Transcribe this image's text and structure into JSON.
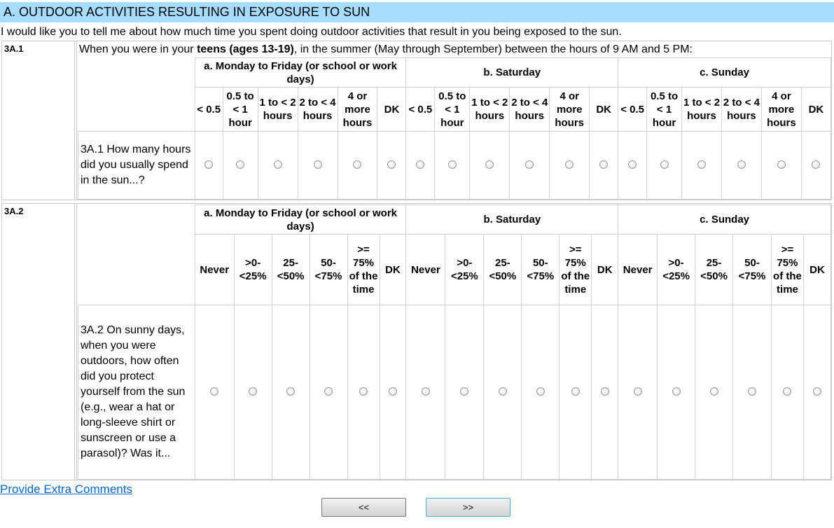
{
  "section_title": "A. OUTDOOR ACTIVITIES RESULTING IN EXPOSURE TO SUN",
  "intro": "I would like you to tell me about how much time you spent doing outdoor activities that result in you being exposed to the sun.",
  "q1": {
    "id": "3A.1",
    "text_pre": "When you were in your ",
    "text_bold": "teens (ages 13-19)",
    "text_post": ", in the summer (May through September) between the hours of 9 AM and 5 PM:",
    "groups": [
      "a. Monday to Friday (or school or work days)",
      "b. Saturday",
      "c. Sunday"
    ],
    "options": [
      "< 0.5",
      "0.5 to < 1 hour",
      "1 to < 2 hours",
      "2 to < 4 hours",
      "4 or more hours",
      "DK"
    ],
    "row_label": "3A.1 How many hours did you usually spend in the sun...?"
  },
  "q2": {
    "id": "3A.2",
    "groups": [
      "a. Monday to Friday (or school or work days)",
      "b. Saturday",
      "c. Sunday"
    ],
    "options": [
      "Never",
      ">0-<25%",
      "25-<50%",
      "50-<75%",
      ">= 75% of the time",
      "DK"
    ],
    "row_label": "3A.2 On sunny days, when you were outdoors, how often did you protect yourself from the sun (e.g., wear a hat or long-sleeve shirt or sunscreen or use a parasol)? Was it..."
  },
  "extra_comments": "Provide Extra Comments",
  "prev_label": "<<",
  "next_label": ">>"
}
